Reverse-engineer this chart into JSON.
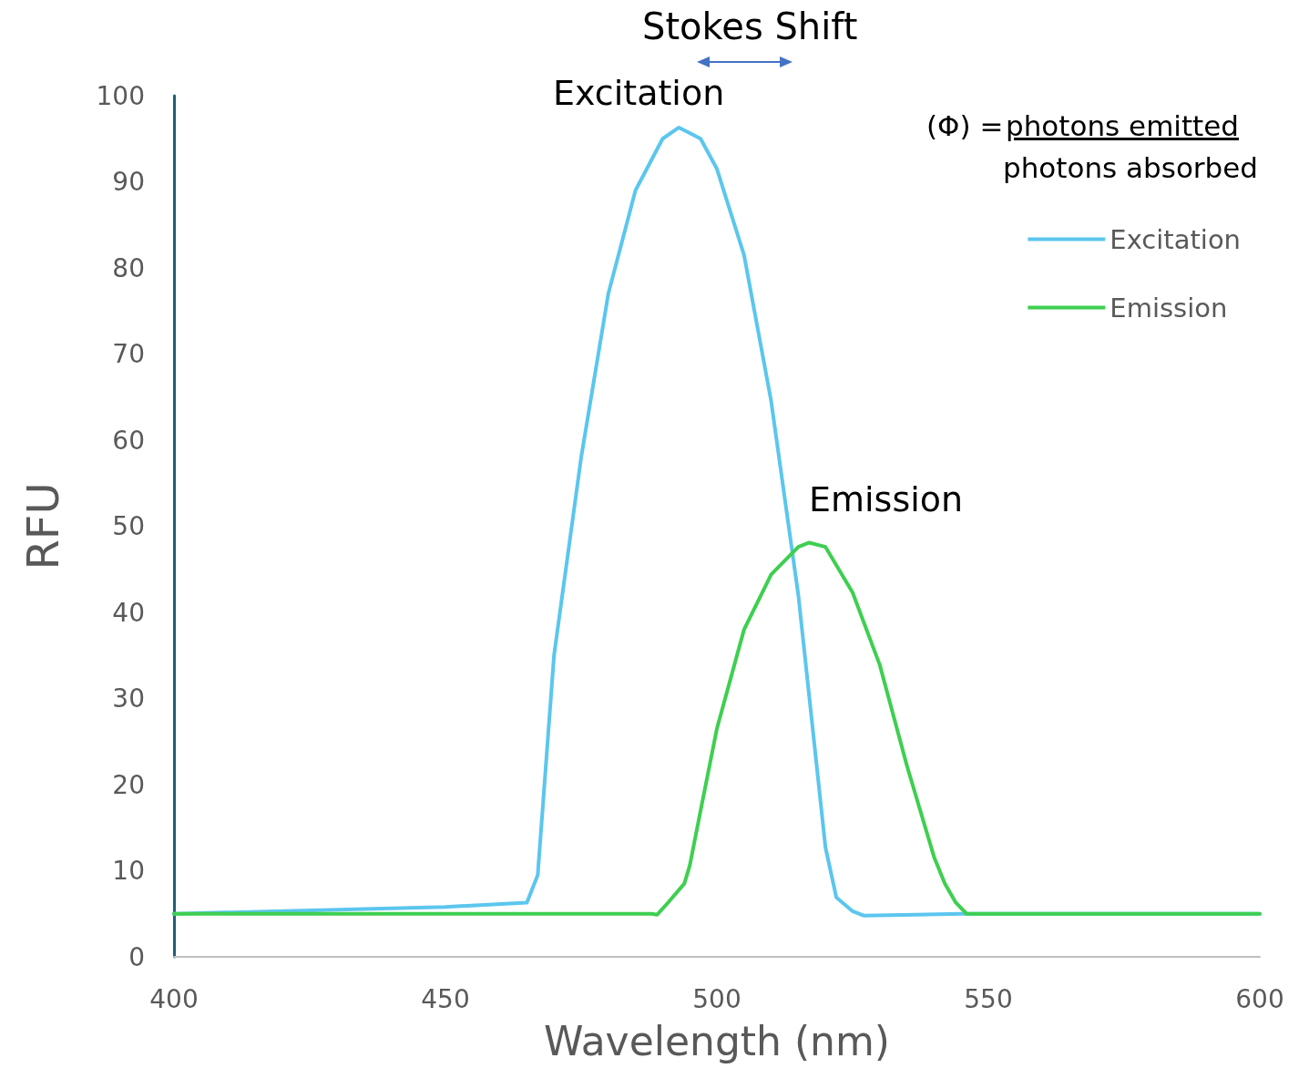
{
  "chart_data": {
    "type": "line",
    "title": "Stokes Shift",
    "xlabel": "Wavelength (nm)",
    "ylabel": "RFU",
    "xlim": [
      400,
      600
    ],
    "xticks": [
      400,
      450,
      500,
      550,
      600
    ],
    "ylim": [
      0,
      100
    ],
    "yticks": [
      0,
      10,
      20,
      30,
      40,
      50,
      60,
      70,
      80,
      90,
      100
    ],
    "grid": false,
    "legend": "top right",
    "marker": "none",
    "line_style": "solid",
    "series": [
      {
        "name": "Excitation",
        "color": "#5bc6ee",
        "x": [
          400,
          450,
          465,
          467,
          470,
          475,
          480,
          485,
          490,
          493,
          497,
          500,
          505,
          510,
          515,
          520,
          522,
          525,
          527,
          545,
          600
        ],
        "values": [
          5,
          5.8,
          6.3,
          9.5,
          35,
          58,
          77,
          89,
          95,
          96.3,
          95,
          91.5,
          81.5,
          64.5,
          42,
          12.7,
          6.9,
          5.3,
          4.8,
          5,
          5
        ]
      },
      {
        "name": "Emission",
        "color": "#3ecf50",
        "x": [
          400,
          488,
          489,
          491,
          494,
          495,
          497,
          500,
          505,
          510,
          515,
          517,
          520,
          525,
          530,
          535,
          540,
          542,
          544,
          546,
          600
        ],
        "values": [
          5,
          5,
          4.9,
          6.3,
          8.5,
          10.6,
          17,
          26.5,
          38,
          44.4,
          47.6,
          48.1,
          47.6,
          42.3,
          33.9,
          22.2,
          11.6,
          8.5,
          6.3,
          5,
          5
        ]
      }
    ],
    "annotations": [
      "Excitation",
      "Emission",
      "(Φ) =",
      "photons emitted",
      "photons absorbed"
    ]
  }
}
